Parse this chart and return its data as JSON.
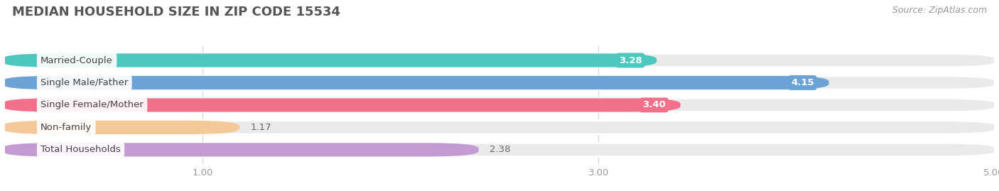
{
  "title": "MEDIAN HOUSEHOLD SIZE IN ZIP CODE 15534",
  "source": "Source: ZipAtlas.com",
  "categories": [
    "Married-Couple",
    "Single Male/Father",
    "Single Female/Mother",
    "Non-family",
    "Total Households"
  ],
  "values": [
    3.28,
    4.15,
    3.4,
    1.17,
    2.38
  ],
  "bar_colors": [
    "#4DC8BE",
    "#6BA3D6",
    "#F2708A",
    "#F5C897",
    "#C39BD3"
  ],
  "value_label_inside": [
    true,
    true,
    true,
    false,
    false
  ],
  "xmin": 0.0,
  "xmax": 5.0,
  "xticks": [
    1.0,
    3.0,
    5.0
  ],
  "background_color": "#ffffff",
  "plot_bg_color": "#f5f5f5",
  "title_fontsize": 13,
  "source_fontsize": 9,
  "bar_label_fontsize": 9.5,
  "category_fontsize": 9.5,
  "tick_fontsize": 9.5
}
